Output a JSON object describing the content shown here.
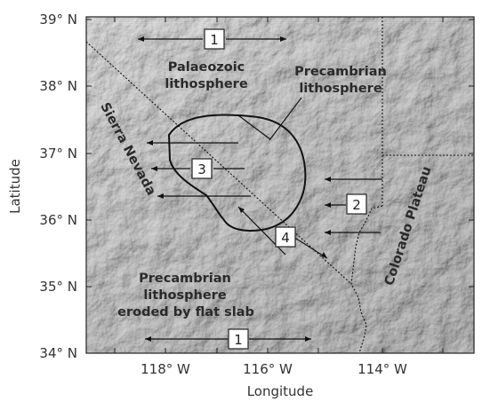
{
  "axes": {
    "ylabel": "Latitude",
    "xlabel": "Longitude",
    "y_ticks": [
      "39° N",
      "38° N",
      "37° N",
      "36° N",
      "35° N",
      "34° N"
    ],
    "x_ticks": [
      "118° W",
      "116° W",
      "114° W"
    ]
  },
  "regions": {
    "palaeozoic": [
      "Palaeozoic",
      "lithosphere"
    ],
    "precambrian_ne": [
      "Precambrian",
      "lithosphere"
    ],
    "precambrian_sw": [
      "Precambrian",
      "lithosphere",
      "eroded by flat slab"
    ],
    "sierra_nevada": "Sierra Nevada",
    "colorado_plateau": "Colorado Plateau"
  },
  "markers": {
    "top": "1",
    "bottom": "1",
    "east": "2",
    "west": "3",
    "center": "4"
  },
  "colors": {
    "relief_light": "#d8d8d8",
    "relief_dark": "#8a8a8a",
    "ink": "#111111"
  }
}
